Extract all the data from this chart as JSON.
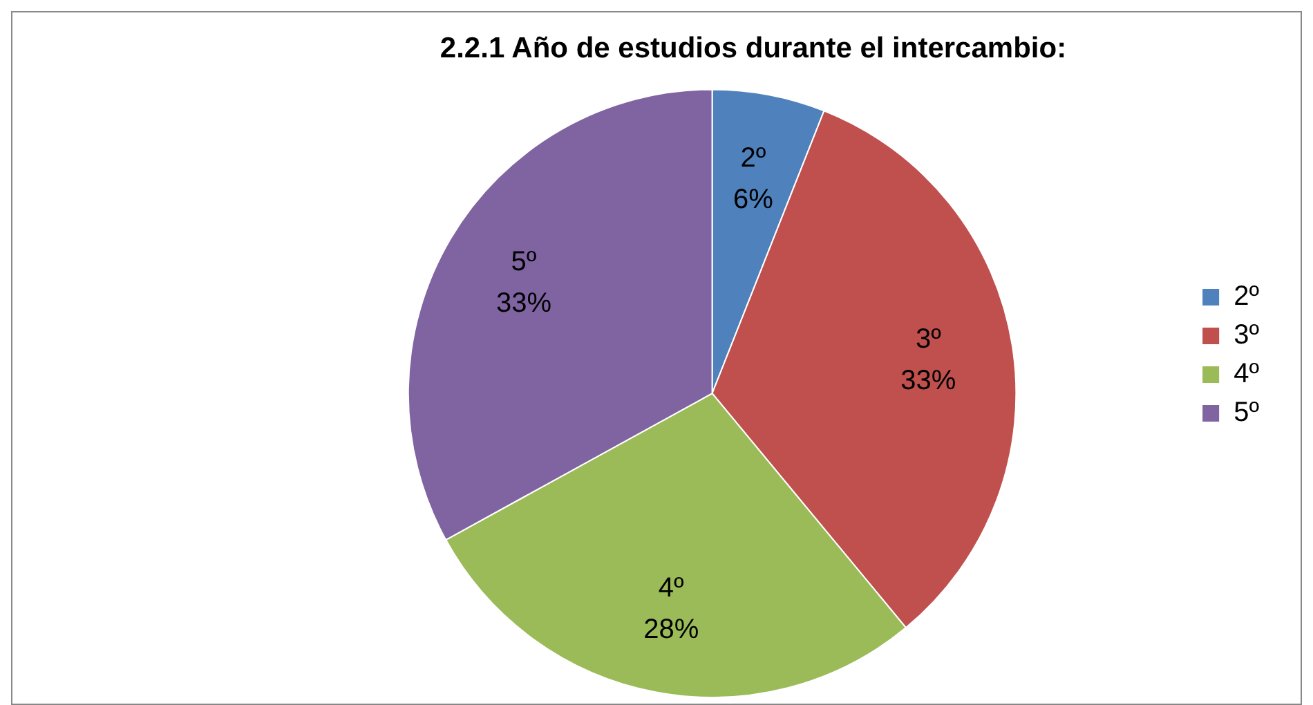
{
  "chart_data": {
    "type": "pie",
    "title": "2.2.1 Año de estudios durante el intercambio:",
    "categories": [
      "2º",
      "3º",
      "4º",
      "5º"
    ],
    "values": [
      6,
      33,
      28,
      33
    ],
    "value_labels": [
      "6%",
      "33%",
      "28%",
      "33%"
    ],
    "colors": [
      "#4f81bd",
      "#c0504d",
      "#9bbb59",
      "#8064a2"
    ],
    "legend": "right"
  }
}
